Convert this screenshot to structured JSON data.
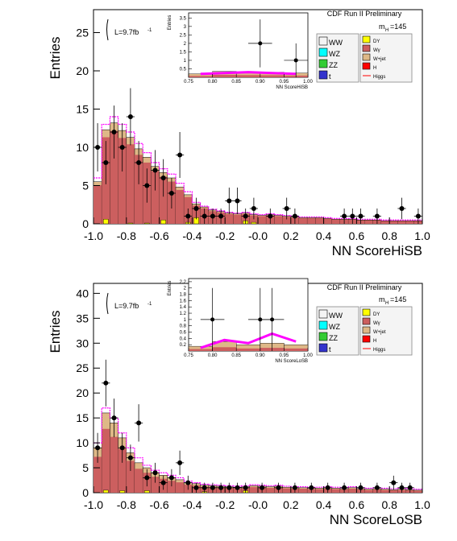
{
  "chart_data": [
    {
      "type": "bar",
      "title": "CDF Run II Preliminary",
      "xlabel": "NN ScoreHiSB",
      "ylabel": "Entries",
      "lumi": "L=9.7fb",
      "lumi_sup": "-1",
      "mass": "m",
      "mass_sub": "H",
      "mass_val": "=145",
      "xlim": [
        -1.0,
        1.0
      ],
      "ylim": [
        0,
        28
      ],
      "xticks": [
        "-1.0",
        "-0.8",
        "-0.6",
        "-0.4",
        "-0.2",
        "-0.0",
        "0.2",
        "0.4",
        "0.6",
        "0.8",
        "1.0"
      ],
      "yticks": [
        "0",
        "5",
        "10",
        "15",
        "20",
        "25"
      ],
      "ytick_values": [
        0,
        5,
        10,
        15,
        20,
        25
      ],
      "bins_x": [
        -1.0,
        -0.95,
        -0.9,
        -0.85,
        -0.8,
        -0.75,
        -0.7,
        -0.65,
        -0.6,
        -0.55,
        -0.5,
        -0.45,
        -0.4,
        -0.35,
        -0.3,
        -0.25,
        -0.2,
        -0.15,
        -0.1,
        -0.05,
        0.0,
        0.05,
        0.1,
        0.15,
        0.2,
        0.25,
        0.3,
        0.35,
        0.4,
        0.45,
        0.5,
        0.55,
        0.6,
        0.65,
        0.7,
        0.75,
        0.8,
        0.85,
        0.9,
        0.95
      ],
      "series": [
        {
          "name": "W+jet",
          "values": [
            5.5,
            12.3,
            13.2,
            12.2,
            11.3,
            9.8,
            8.7,
            7.5,
            6.7,
            6.0,
            4.8,
            3.8,
            2.6,
            2.2,
            1.8,
            1.6,
            1.4,
            1.3,
            1.4,
            1.2,
            1.1,
            1.2,
            1.1,
            1.0,
            0.9,
            0.8,
            0.8,
            0.8,
            0.7,
            0.6,
            0.6,
            0.6,
            0.5,
            0.5,
            0.5,
            0.4,
            0.4,
            0.4,
            0.4,
            0.4
          ]
        },
        {
          "name": "DY",
          "values": [
            0,
            0.6,
            0,
            0,
            0.1,
            0,
            0.1,
            0,
            0.5,
            0,
            0,
            0.2,
            0.8,
            0,
            0,
            0,
            0,
            0,
            0.4,
            0.2,
            0,
            0,
            0,
            0,
            0,
            0,
            0,
            0,
            0,
            0,
            0,
            0,
            0,
            0,
            0,
            0,
            0,
            0,
            0,
            0
          ]
        },
        {
          "name": "Higgs",
          "values": [
            6.0,
            13.0,
            14.0,
            13.0,
            12.0,
            10.5,
            9.3,
            8.0,
            7.2,
            6.5,
            5.3,
            4.2,
            2.8,
            2.3,
            1.9,
            1.7,
            1.5,
            1.4,
            1.5,
            1.3,
            1.2,
            1.3,
            1.2,
            1.1,
            1.0,
            0.9,
            0.9,
            0.9,
            0.8,
            0.7,
            0.7,
            0.7,
            0.6,
            0.6,
            0.6,
            0.5,
            0.5,
            0.5,
            0.5,
            0.5
          ]
        }
      ],
      "data_points": [
        {
          "x": -0.975,
          "y": 10
        },
        {
          "x": -0.925,
          "y": 8
        },
        {
          "x": -0.875,
          "y": 12
        },
        {
          "x": -0.825,
          "y": 10
        },
        {
          "x": -0.775,
          "y": 14
        },
        {
          "x": -0.725,
          "y": 8
        },
        {
          "x": -0.675,
          "y": 5
        },
        {
          "x": -0.625,
          "y": 7
        },
        {
          "x": -0.575,
          "y": 6
        },
        {
          "x": -0.525,
          "y": 4
        },
        {
          "x": -0.475,
          "y": 9
        },
        {
          "x": -0.425,
          "y": 1
        },
        {
          "x": -0.375,
          "y": 2
        },
        {
          "x": -0.325,
          "y": 1
        },
        {
          "x": -0.275,
          "y": 1
        },
        {
          "x": -0.225,
          "y": 1
        },
        {
          "x": -0.175,
          "y": 3
        },
        {
          "x": -0.125,
          "y": 3
        },
        {
          "x": -0.075,
          "y": 1
        },
        {
          "x": -0.025,
          "y": 2
        },
        {
          "x": 0.075,
          "y": 1
        },
        {
          "x": 0.175,
          "y": 2
        },
        {
          "x": 0.225,
          "y": 1
        },
        {
          "x": 0.525,
          "y": 1
        },
        {
          "x": 0.575,
          "y": 1
        },
        {
          "x": 0.625,
          "y": 1
        },
        {
          "x": 0.725,
          "y": 1
        },
        {
          "x": 0.875,
          "y": 2
        },
        {
          "x": 0.975,
          "y": 1
        }
      ],
      "inset": {
        "xlabel": "NN ScoreHiSB",
        "ylabel": "Entries",
        "xlim": [
          0.75,
          1.0
        ],
        "ylim": [
          0,
          3.8
        ],
        "xticks": [
          "0.75",
          "0.80",
          "0.85",
          "0.90",
          "0.95",
          "1.00"
        ],
        "yticks": [
          "0.5",
          "1",
          "1.5",
          "2",
          "2.5",
          "3",
          "3.5"
        ],
        "ytick_values": [
          0.5,
          1,
          1.5,
          2,
          2.5,
          3,
          3.5
        ],
        "bins_x": [
          0.75,
          0.8,
          0.85,
          0.9,
          0.95
        ],
        "series": [
          {
            "name": "W+jet",
            "values": [
              0.2,
              0.35,
              0.32,
              0.3,
              0.25
            ]
          },
          {
            "name": "Higgs",
            "values": [
              0.2,
              0.25,
              0.3,
              0.25,
              0.2
            ]
          }
        ],
        "data_points": [
          {
            "x": 0.9,
            "y": 2
          },
          {
            "x": 0.975,
            "y": 1
          }
        ]
      }
    },
    {
      "type": "bar",
      "title": "CDF Run II Preliminary",
      "xlabel": "NN ScoreLoSB",
      "ylabel": "Entries",
      "lumi": "L=9.7fb",
      "lumi_sup": "-1",
      "mass": "m",
      "mass_sub": "H",
      "mass_val": "=145",
      "xlim": [
        -1.0,
        1.0
      ],
      "ylim": [
        0,
        42
      ],
      "xticks": [
        "-1.0",
        "-0.8",
        "-0.6",
        "-0.4",
        "-0.2",
        "-0.0",
        "0.2",
        "0.4",
        "0.6",
        "0.8",
        "1.0"
      ],
      "yticks": [
        "0",
        "5",
        "10",
        "15",
        "20",
        "25",
        "30",
        "35",
        "40"
      ],
      "ytick_values": [
        0,
        5,
        10,
        15,
        20,
        25,
        30,
        35,
        40
      ],
      "bins_x": [
        -1.0,
        -0.95,
        -0.9,
        -0.85,
        -0.8,
        -0.75,
        -0.7,
        -0.65,
        -0.6,
        -0.55,
        -0.5,
        -0.45,
        -0.4,
        -0.35,
        -0.3,
        -0.25,
        -0.2,
        -0.15,
        -0.1,
        -0.05,
        0.0,
        0.05,
        0.1,
        0.15,
        0.2,
        0.25,
        0.3,
        0.35,
        0.4,
        0.45,
        0.5,
        0.55,
        0.6,
        0.65,
        0.7,
        0.75,
        0.8,
        0.85,
        0.9,
        0.95
      ],
      "series": [
        {
          "name": "W+jet",
          "values": [
            9,
            16,
            14,
            11,
            8,
            6,
            5,
            4,
            3.5,
            3,
            2.6,
            2,
            1.8,
            1.5,
            1.4,
            1.3,
            1.2,
            1.1,
            1.2,
            1.4,
            1.3,
            1.2,
            1.3,
            1.1,
            1.0,
            1.0,
            0.9,
            0.9,
            1.0,
            0.9,
            0.8,
            1.0,
            0.8,
            0.7,
            0.8,
            0.7,
            0.6,
            0.7,
            0.6,
            0.5
          ]
        },
        {
          "name": "DY",
          "values": [
            0,
            0.5,
            0,
            0.4,
            0,
            0,
            0.4,
            0,
            0,
            0,
            0,
            0,
            0,
            0.2,
            0,
            0,
            0,
            0,
            0.4,
            0,
            0,
            0,
            0,
            0,
            0,
            0,
            0,
            0,
            0,
            0,
            0,
            0,
            0,
            0,
            0,
            0,
            0,
            0,
            0,
            0
          ]
        },
        {
          "name": "Higgs",
          "values": [
            10,
            17,
            15,
            12,
            9,
            7,
            5.5,
            4.5,
            4,
            3.5,
            3,
            2.3,
            2,
            1.7,
            1.6,
            1.5,
            1.4,
            1.3,
            1.4,
            1.6,
            1.5,
            1.4,
            1.5,
            1.3,
            1.2,
            1.2,
            1.1,
            1.1,
            1.2,
            1.1,
            1.0,
            1.2,
            1.0,
            0.9,
            1.0,
            0.9,
            0.8,
            0.9,
            0.8,
            0.7
          ]
        }
      ],
      "data_points": [
        {
          "x": -0.975,
          "y": 9
        },
        {
          "x": -0.925,
          "y": 22
        },
        {
          "x": -0.875,
          "y": 15
        },
        {
          "x": -0.825,
          "y": 9
        },
        {
          "x": -0.775,
          "y": 7
        },
        {
          "x": -0.725,
          "y": 14
        },
        {
          "x": -0.675,
          "y": 3
        },
        {
          "x": -0.625,
          "y": 4
        },
        {
          "x": -0.575,
          "y": 2
        },
        {
          "x": -0.525,
          "y": 3
        },
        {
          "x": -0.475,
          "y": 6
        },
        {
          "x": -0.425,
          "y": 2
        },
        {
          "x": -0.375,
          "y": 1
        },
        {
          "x": -0.325,
          "y": 1
        },
        {
          "x": -0.275,
          "y": 1
        },
        {
          "x": -0.225,
          "y": 1
        },
        {
          "x": -0.175,
          "y": 1
        },
        {
          "x": -0.125,
          "y": 1
        },
        {
          "x": -0.075,
          "y": 1
        },
        {
          "x": 0.025,
          "y": 1
        },
        {
          "x": 0.125,
          "y": 1
        },
        {
          "x": 0.225,
          "y": 1
        },
        {
          "x": 0.325,
          "y": 1
        },
        {
          "x": 0.425,
          "y": 1
        },
        {
          "x": 0.525,
          "y": 1
        },
        {
          "x": 0.625,
          "y": 1
        },
        {
          "x": 0.725,
          "y": 1
        },
        {
          "x": 0.825,
          "y": 2
        },
        {
          "x": 0.875,
          "y": 1
        },
        {
          "x": 0.925,
          "y": 1
        }
      ],
      "inset": {
        "xlabel": "NN ScoreLoSB",
        "ylabel": "Entries",
        "xlim": [
          0.75,
          1.0
        ],
        "ylim": [
          0,
          2.3
        ],
        "xticks": [
          "0.75",
          "0.80",
          "0.85",
          "0.90",
          "0.95",
          "1.00"
        ],
        "yticks": [
          "0.2",
          "0.4",
          "0.6",
          "0.8",
          "1",
          "1.2",
          "1.4",
          "1.6",
          "1.8",
          "2",
          "2.2"
        ],
        "ytick_values": [
          0.2,
          0.4,
          0.6,
          0.8,
          1,
          1.2,
          1.4,
          1.6,
          1.8,
          2,
          2.2
        ],
        "bins_x": [
          0.75,
          0.8,
          0.85,
          0.9,
          0.95
        ],
        "series": [
          {
            "name": "W+jet",
            "values": [
              0.15,
              0.3,
              0.2,
              0.25,
              0.2
            ]
          },
          {
            "name": "Higgs",
            "values": [
              0.1,
              0.35,
              0.25,
              0.55,
              0.3
            ]
          }
        ],
        "data_points": [
          {
            "x": 0.8,
            "y": 1
          },
          {
            "x": 0.9,
            "y": 1
          },
          {
            "x": 0.925,
            "y": 1
          }
        ]
      }
    }
  ],
  "legend": {
    "left": [
      {
        "label": "WW",
        "color": "#f4f4f4"
      },
      {
        "label": "WZ",
        "color": "#00ffff"
      },
      {
        "label": "ZZ",
        "color": "#33cc33"
      },
      {
        "label": "t",
        "sup": "t",
        "color": "#3333cc"
      }
    ],
    "right": [
      {
        "label": "DY",
        "color": "#ffff00"
      },
      {
        "label": "Wγ",
        "color": "#cc5f5f"
      },
      {
        "label": "W+jet",
        "color": "#deb887"
      },
      {
        "label": "H",
        "color": "#ff0000"
      },
      {
        "label": "Higgs",
        "color": "#ff0000",
        "line": true
      }
    ]
  },
  "colors": {
    "wjet": "#cc5f5f",
    "wgamma": "#deb887",
    "dy": "#ffff00",
    "higgs": "#ff00ff",
    "points": "#000000"
  }
}
